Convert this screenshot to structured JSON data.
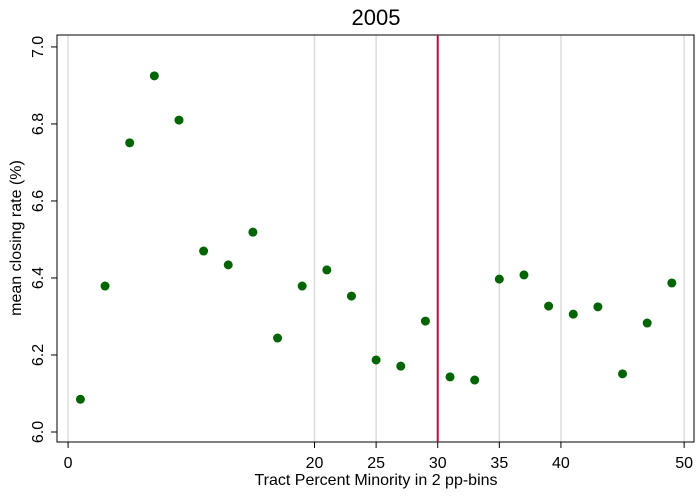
{
  "chart_data": {
    "type": "scatter",
    "title": "2005",
    "x_label": "Tract Percent Minority in 2 pp-bins",
    "y_label": "mean  closing rate (%)",
    "x": [
      1,
      3,
      5,
      7,
      9,
      11,
      13,
      15,
      17,
      19,
      21,
      23,
      25,
      27,
      29,
      31,
      33,
      35,
      37,
      39,
      41,
      43,
      45,
      47,
      49
    ],
    "values": [
      6.085,
      6.379,
      6.751,
      6.925,
      6.81,
      6.47,
      6.434,
      6.519,
      6.244,
      6.379,
      6.421,
      6.353,
      6.187,
      6.171,
      6.288,
      6.143,
      6.135,
      6.397,
      6.408,
      6.327,
      6.306,
      6.325,
      6.151,
      6.283,
      6.387
    ],
    "color": "#006400",
    "xlim": [
      -0.9,
      50.8
    ],
    "ylim": [
      5.974,
      7.031
    ],
    "xticks": [
      0,
      20,
      25,
      30,
      35,
      40,
      50
    ],
    "yticks": [
      {
        "value": 6,
        "label": "6.0"
      },
      6.2,
      6.4,
      6.6,
      6.8,
      {
        "value": 7,
        "label": "7.0"
      }
    ],
    "grid": true,
    "vline": 30,
    "vline_color": "#b0133a"
  }
}
